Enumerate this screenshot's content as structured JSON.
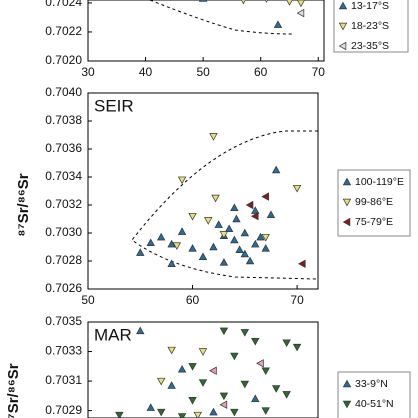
{
  "chart_data": [
    {
      "type": "scatter",
      "title": null,
      "xlim": [
        30,
        71
      ],
      "xticks": [
        30,
        40,
        50,
        60,
        70
      ],
      "ylim": [
        0.702,
        0.70242
      ],
      "yticks": [
        {
          "value": 0.702,
          "label": "0.7020"
        },
        0.7022,
        0.7024
      ],
      "series": [
        {
          "name": "13-17°S",
          "color": "#2a6c9a",
          "marker": "up",
          "x": [
            50,
            63
          ],
          "values": [
            0.70243,
            0.70225
          ]
        },
        {
          "name": "18-23°S",
          "color": "#e6e07a",
          "marker": "down",
          "x": [
            57,
            61,
            65,
            67
          ],
          "values": [
            0.70242,
            0.70243,
            0.70241,
            0.7024
          ]
        },
        {
          "name": "23-35°S",
          "color": "#dddddd",
          "marker": "left",
          "x": [
            67
          ],
          "values": [
            0.70233
          ]
        }
      ]
    },
    {
      "type": "scatter",
      "title": "SEIR",
      "y_label": "⁸⁷Sr/⁸⁶Sr",
      "xlim": [
        50,
        72
      ],
      "xticks": [
        50,
        60,
        70
      ],
      "ylim": [
        0.7026,
        0.704
      ],
      "yticks": [
        {
          "value": 0.7026,
          "label": "0.7026"
        },
        {
          "value": 0.7028,
          "label": "0.7028"
        },
        {
          "value": 0.703,
          "label": "0.7030"
        },
        {
          "value": 0.7032,
          "label": "0.7032"
        },
        {
          "value": 0.7034,
          "label": "0.7034"
        },
        {
          "value": 0.7036,
          "label": "0.7036"
        },
        {
          "value": 0.7038,
          "label": "0.7038"
        },
        {
          "value": 0.704,
          "label": "0.7040"
        }
      ],
      "series": [
        {
          "name": "100-119°E",
          "color": "#2a6c9a",
          "marker": "up",
          "x": [
            56,
            55,
            57,
            58,
            59,
            60,
            61,
            62,
            63,
            63.5,
            64,
            64.5,
            65,
            65.5,
            66,
            66.5,
            67,
            67.5,
            64,
            66,
            62.5,
            64.2,
            68,
            65,
            58,
            63
          ],
          "values": [
            0.70293,
            0.70286,
            0.70297,
            0.70292,
            0.70301,
            0.70289,
            0.70283,
            0.7029,
            0.70298,
            0.70303,
            0.70295,
            0.70288,
            0.70285,
            0.7028,
            0.70292,
            0.70297,
            0.70289,
            0.70313,
            0.70318,
            0.70316,
            0.70306,
            0.7031,
            0.70345,
            0.703,
            0.70278,
            0.70279
          ]
        },
        {
          "name": "99-86°E",
          "color": "#e6e07a",
          "marker": "down",
          "x": [
            59,
            62,
            61.5,
            58.5,
            63,
            70,
            67,
            62.2,
            60
          ],
          "values": [
            0.70338,
            0.70369,
            0.70309,
            0.70291,
            0.70299,
            0.70332,
            0.70297,
            0.70325,
            0.70312
          ]
        },
        {
          "name": "75-79°E",
          "color": "#8b1a1a",
          "marker": "left",
          "x": [
            67,
            65.5,
            66,
            70.5
          ],
          "values": [
            0.70326,
            0.7032,
            0.70312,
            0.70278
          ]
        }
      ]
    },
    {
      "type": "scatter",
      "title": "MAR",
      "y_label": "⁸⁷Sr/⁸⁶Sr",
      "xlim": [
        50,
        72
      ],
      "ylim": [
        0.70285,
        0.7035
      ],
      "yticks": [
        0.7029,
        0.7031,
        0.7033,
        0.7035
      ],
      "series": [
        {
          "name": "33-9°N",
          "color": "#2a6c9a",
          "marker": "up",
          "x": [
            55,
            58,
            59,
            62,
            66,
            56
          ],
          "values": [
            0.70344,
            0.70307,
            0.70318,
            0.70289,
            0.70298,
            0.70292
          ]
        },
        {
          "name": "40-51°N",
          "color": "#2e6b2e",
          "marker": "down",
          "x": [
            53,
            60,
            63,
            65,
            66,
            69,
            70,
            64,
            67,
            61,
            63,
            65,
            68,
            60,
            69,
            57,
            64,
            67,
            59
          ],
          "values": [
            0.70287,
            0.7032,
            0.70344,
            0.70343,
            0.70337,
            0.70336,
            0.70333,
            0.70327,
            0.70317,
            0.70309,
            0.703,
            0.70308,
            0.70305,
            0.70297,
            0.70301,
            0.70289,
            0.70289,
            0.7029,
            0.70286
          ]
        },
        {
          "color": "#e8a0b0",
          "marker": "left",
          "x": [
            62,
            66.5,
            63
          ],
          "values": [
            0.70317,
            0.70322,
            0.70294
          ]
        },
        {
          "color": "#e6e07a",
          "marker": "down",
          "x": [
            58,
            61,
            57,
            60.5
          ],
          "values": [
            0.70331,
            0.7033,
            0.7031,
            0.70287
          ]
        }
      ]
    }
  ]
}
